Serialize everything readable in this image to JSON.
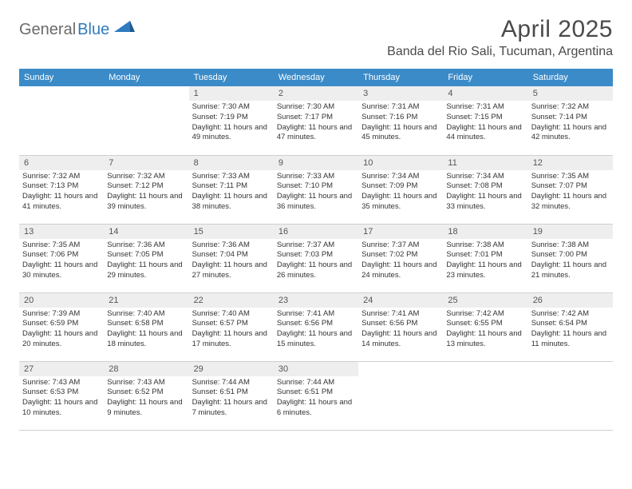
{
  "logo": {
    "part1": "General",
    "part2": "Blue"
  },
  "title": "April 2025",
  "location": "Banda del Rio Sali, Tucuman, Argentina",
  "colors": {
    "header_bg": "#3b8bc8",
    "header_fg": "#ffffff",
    "daynum_bg": "#eeeeee",
    "border": "#cfcfcf",
    "logo_gray": "#6a6a6a",
    "logo_blue": "#2f7bbf",
    "title_color": "#4a4a4a"
  },
  "day_names": [
    "Sunday",
    "Monday",
    "Tuesday",
    "Wednesday",
    "Thursday",
    "Friday",
    "Saturday"
  ],
  "weeks": [
    [
      null,
      null,
      {
        "n": "1",
        "sr": "7:30 AM",
        "ss": "7:19 PM",
        "dl": "11 hours and 49 minutes."
      },
      {
        "n": "2",
        "sr": "7:30 AM",
        "ss": "7:17 PM",
        "dl": "11 hours and 47 minutes."
      },
      {
        "n": "3",
        "sr": "7:31 AM",
        "ss": "7:16 PM",
        "dl": "11 hours and 45 minutes."
      },
      {
        "n": "4",
        "sr": "7:31 AM",
        "ss": "7:15 PM",
        "dl": "11 hours and 44 minutes."
      },
      {
        "n": "5",
        "sr": "7:32 AM",
        "ss": "7:14 PM",
        "dl": "11 hours and 42 minutes."
      }
    ],
    [
      {
        "n": "6",
        "sr": "7:32 AM",
        "ss": "7:13 PM",
        "dl": "11 hours and 41 minutes."
      },
      {
        "n": "7",
        "sr": "7:32 AM",
        "ss": "7:12 PM",
        "dl": "11 hours and 39 minutes."
      },
      {
        "n": "8",
        "sr": "7:33 AM",
        "ss": "7:11 PM",
        "dl": "11 hours and 38 minutes."
      },
      {
        "n": "9",
        "sr": "7:33 AM",
        "ss": "7:10 PM",
        "dl": "11 hours and 36 minutes."
      },
      {
        "n": "10",
        "sr": "7:34 AM",
        "ss": "7:09 PM",
        "dl": "11 hours and 35 minutes."
      },
      {
        "n": "11",
        "sr": "7:34 AM",
        "ss": "7:08 PM",
        "dl": "11 hours and 33 minutes."
      },
      {
        "n": "12",
        "sr": "7:35 AM",
        "ss": "7:07 PM",
        "dl": "11 hours and 32 minutes."
      }
    ],
    [
      {
        "n": "13",
        "sr": "7:35 AM",
        "ss": "7:06 PM",
        "dl": "11 hours and 30 minutes."
      },
      {
        "n": "14",
        "sr": "7:36 AM",
        "ss": "7:05 PM",
        "dl": "11 hours and 29 minutes."
      },
      {
        "n": "15",
        "sr": "7:36 AM",
        "ss": "7:04 PM",
        "dl": "11 hours and 27 minutes."
      },
      {
        "n": "16",
        "sr": "7:37 AM",
        "ss": "7:03 PM",
        "dl": "11 hours and 26 minutes."
      },
      {
        "n": "17",
        "sr": "7:37 AM",
        "ss": "7:02 PM",
        "dl": "11 hours and 24 minutes."
      },
      {
        "n": "18",
        "sr": "7:38 AM",
        "ss": "7:01 PM",
        "dl": "11 hours and 23 minutes."
      },
      {
        "n": "19",
        "sr": "7:38 AM",
        "ss": "7:00 PM",
        "dl": "11 hours and 21 minutes."
      }
    ],
    [
      {
        "n": "20",
        "sr": "7:39 AM",
        "ss": "6:59 PM",
        "dl": "11 hours and 20 minutes."
      },
      {
        "n": "21",
        "sr": "7:40 AM",
        "ss": "6:58 PM",
        "dl": "11 hours and 18 minutes."
      },
      {
        "n": "22",
        "sr": "7:40 AM",
        "ss": "6:57 PM",
        "dl": "11 hours and 17 minutes."
      },
      {
        "n": "23",
        "sr": "7:41 AM",
        "ss": "6:56 PM",
        "dl": "11 hours and 15 minutes."
      },
      {
        "n": "24",
        "sr": "7:41 AM",
        "ss": "6:56 PM",
        "dl": "11 hours and 14 minutes."
      },
      {
        "n": "25",
        "sr": "7:42 AM",
        "ss": "6:55 PM",
        "dl": "11 hours and 13 minutes."
      },
      {
        "n": "26",
        "sr": "7:42 AM",
        "ss": "6:54 PM",
        "dl": "11 hours and 11 minutes."
      }
    ],
    [
      {
        "n": "27",
        "sr": "7:43 AM",
        "ss": "6:53 PM",
        "dl": "11 hours and 10 minutes."
      },
      {
        "n": "28",
        "sr": "7:43 AM",
        "ss": "6:52 PM",
        "dl": "11 hours and 9 minutes."
      },
      {
        "n": "29",
        "sr": "7:44 AM",
        "ss": "6:51 PM",
        "dl": "11 hours and 7 minutes."
      },
      {
        "n": "30",
        "sr": "7:44 AM",
        "ss": "6:51 PM",
        "dl": "11 hours and 6 minutes."
      },
      null,
      null,
      null
    ]
  ],
  "labels": {
    "sunrise": "Sunrise: ",
    "sunset": "Sunset: ",
    "daylight": "Daylight: "
  }
}
